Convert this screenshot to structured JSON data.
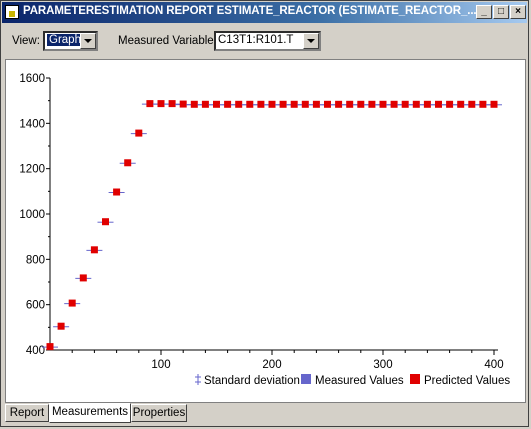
{
  "window": {
    "title": "PARAMETERESTIMATION REPORT ESTIMATE_REACTOR (ESTIMATE_REACTOR_...",
    "minimize_label": "_",
    "maximize_label": "□",
    "close_label": "×"
  },
  "toolbar": {
    "view_label": "View:",
    "view_value": "Graph",
    "measured_variable_label": "Measured Variable:",
    "measured_variable_value": "C13T1:R101.T"
  },
  "tabs": [
    {
      "label": "Report"
    },
    {
      "label": "Measurements"
    },
    {
      "label": "Properties"
    }
  ],
  "active_tab": "Measurements",
  "colors": {
    "predicted": "#e00000",
    "measured": "#6666cc",
    "std": "#6666cc"
  },
  "chart_data": {
    "type": "scatter",
    "title": "",
    "xlabel": "",
    "ylabel": "",
    "xlim": [
      0,
      400
    ],
    "ylim": [
      400,
      1600
    ],
    "x_ticks": [
      100,
      200,
      300,
      400
    ],
    "y_ticks": [
      400,
      600,
      800,
      1000,
      1200,
      1400,
      1600
    ],
    "grid": false,
    "legend_position": "bottom-right",
    "legend": [
      "Standard deviation",
      "Measured Values",
      "Predicted Values"
    ],
    "series": [
      {
        "name": "Predicted Values",
        "x": [
          0,
          10,
          20,
          30,
          40,
          50,
          60,
          70,
          80,
          90,
          100,
          110,
          120,
          130,
          140,
          150,
          160,
          170,
          180,
          190,
          200,
          210,
          220,
          230,
          240,
          250,
          260,
          270,
          280,
          290,
          300,
          310,
          320,
          330,
          340,
          350,
          360,
          370,
          380,
          390,
          400
        ],
        "y": [
          415,
          505,
          607,
          718,
          842,
          966,
          1097,
          1226,
          1357,
          1487,
          1487,
          1487,
          1485,
          1484,
          1484,
          1484,
          1484,
          1484,
          1484,
          1484,
          1484,
          1484,
          1484,
          1484,
          1484,
          1484,
          1484,
          1484,
          1484,
          1484,
          1484,
          1484,
          1484,
          1484,
          1484,
          1484,
          1484,
          1484,
          1484,
          1484,
          1484
        ]
      }
    ]
  }
}
